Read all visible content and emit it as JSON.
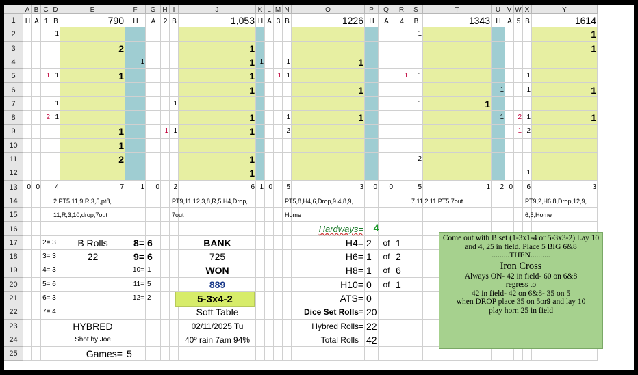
{
  "columns": [
    "A",
    "B",
    "C",
    "D",
    "E",
    "F",
    "G",
    "H",
    "I",
    "J",
    "K",
    "L",
    "M",
    "N",
    "O",
    "P",
    "Q",
    "R",
    "S",
    "T",
    "U",
    "V",
    "W",
    "X",
    "Y"
  ],
  "rows": [
    "1",
    "2",
    "3",
    "4",
    "5",
    "6",
    "7",
    "8",
    "9",
    "10",
    "11",
    "12",
    "13",
    "14",
    "15",
    "16",
    "17",
    "18",
    "19",
    "20",
    "21",
    "22",
    "23",
    "24",
    "25"
  ],
  "header_row": {
    "A": "H",
    "B": "A",
    "C": "1",
    "D": "B",
    "E": "790",
    "F": "H",
    "G": "A",
    "H": "2",
    "I": "B",
    "J": "1,053",
    "K": "H",
    "L": "A",
    "M": "3",
    "N": "B",
    "O": "1226",
    "P": "H",
    "Q": "A",
    "R": "4",
    "S": "B",
    "T": "1343",
    "U": "H",
    "V": "A",
    "W": "5",
    "X": "B",
    "Y": "1614"
  },
  "cells": [
    {
      "col": "D",
      "row": 2,
      "v": "1"
    },
    {
      "col": "S",
      "row": 2,
      "v": "1"
    },
    {
      "col": "Y",
      "row": 2,
      "v": "1"
    },
    {
      "col": "E",
      "row": 3,
      "v": "2"
    },
    {
      "col": "J",
      "row": 3,
      "v": "1"
    },
    {
      "col": "Y",
      "row": 3,
      "v": "1"
    },
    {
      "col": "F",
      "row": 4,
      "v": "1"
    },
    {
      "col": "J",
      "row": 4,
      "v": "1"
    },
    {
      "col": "K",
      "row": 4,
      "v": "1"
    },
    {
      "col": "N",
      "row": 4,
      "v": "1"
    },
    {
      "col": "O",
      "row": 4,
      "v": "1"
    },
    {
      "col": "C",
      "row": 5,
      "v": "1",
      "red": true
    },
    {
      "col": "D",
      "row": 5,
      "v": "1"
    },
    {
      "col": "E",
      "row": 5,
      "v": "1"
    },
    {
      "col": "J",
      "row": 5,
      "v": "1"
    },
    {
      "col": "M",
      "row": 5,
      "v": "1",
      "red": true
    },
    {
      "col": "N",
      "row": 5,
      "v": "1"
    },
    {
      "col": "R",
      "row": 5,
      "v": "1",
      "red": true
    },
    {
      "col": "S",
      "row": 5,
      "v": "1"
    },
    {
      "col": "X",
      "row": 5,
      "v": "1"
    },
    {
      "col": "J",
      "row": 6,
      "v": "1"
    },
    {
      "col": "O",
      "row": 6,
      "v": "1"
    },
    {
      "col": "U",
      "row": 6,
      "v": "1"
    },
    {
      "col": "X",
      "row": 6,
      "v": "1"
    },
    {
      "col": "Y",
      "row": 6,
      "v": "1"
    },
    {
      "col": "D",
      "row": 7,
      "v": "1"
    },
    {
      "col": "I",
      "row": 7,
      "v": "1"
    },
    {
      "col": "S",
      "row": 7,
      "v": "1"
    },
    {
      "col": "T",
      "row": 7,
      "v": "1"
    },
    {
      "col": "C",
      "row": 8,
      "v": "2",
      "red": true
    },
    {
      "col": "D",
      "row": 8,
      "v": "1"
    },
    {
      "col": "J",
      "row": 8,
      "v": "1"
    },
    {
      "col": "N",
      "row": 8,
      "v": "1"
    },
    {
      "col": "O",
      "row": 8,
      "v": "1"
    },
    {
      "col": "U",
      "row": 8,
      "v": "1"
    },
    {
      "col": "W",
      "row": 8,
      "v": "2",
      "red": true
    },
    {
      "col": "X",
      "row": 8,
      "v": "1"
    },
    {
      "col": "Y",
      "row": 8,
      "v": "1"
    },
    {
      "col": "E",
      "row": 9,
      "v": "1"
    },
    {
      "col": "H",
      "row": 9,
      "v": "1",
      "red": true
    },
    {
      "col": "I",
      "row": 9,
      "v": "1"
    },
    {
      "col": "J",
      "row": 9,
      "v": "1"
    },
    {
      "col": "N",
      "row": 9,
      "v": "2"
    },
    {
      "col": "W",
      "row": 9,
      "v": "1",
      "red": true
    },
    {
      "col": "X",
      "row": 9,
      "v": "2"
    },
    {
      "col": "E",
      "row": 10,
      "v": "1"
    },
    {
      "col": "E",
      "row": 11,
      "v": "2"
    },
    {
      "col": "J",
      "row": 11,
      "v": "1"
    },
    {
      "col": "S",
      "row": 11,
      "v": "2"
    },
    {
      "col": "J",
      "row": 12,
      "v": "1"
    },
    {
      "col": "X",
      "row": 12,
      "v": "1"
    }
  ],
  "totals_row": {
    "A": "0",
    "B": "0",
    "D": "4",
    "E": "7",
    "F": "1",
    "G": "0",
    "I": "2",
    "J": "6",
    "K": "1",
    "L": "0",
    "N": "5",
    "O": "3",
    "P": "0",
    "Q": "0",
    "S": "5",
    "T": "1",
    "U": "2",
    "V": "0",
    "X": "6",
    "Y": "3"
  },
  "sequences": [
    {
      "col": "D",
      "row14": "2,PT5,11,9,R,3,5,pt8,",
      "row15": "11,R,3,10,drop,7out"
    },
    {
      "col": "I",
      "row14": "PT9,11,12,3,8,R,5,H4,Drop,",
      "row15": "7out"
    },
    {
      "col": "N",
      "row14": "PT5,8,H4,6,Drop,9,4,8,9,",
      "row15": "Home"
    },
    {
      "col": "S",
      "row14": "7,11,2,11,PT5,7out",
      "row15": ""
    },
    {
      "col": "X",
      "row14": "PT9,2,H6,8,Drop,12,9,",
      "row15": "6,5,Home"
    }
  ],
  "sum_counts": [
    {
      "label": "2= 3",
      "row": 17
    },
    {
      "label": "3= 3",
      "row": 18
    },
    {
      "label": "4= 3",
      "row": 19
    },
    {
      "label": "5= 6",
      "row": 20
    },
    {
      "label": "6= 3",
      "row": 21
    },
    {
      "label": "7= 4",
      "row": 22
    }
  ],
  "sum_counts_b": [
    {
      "label": "8=",
      "val": "6",
      "row": 17
    },
    {
      "label": "9=",
      "val": "6",
      "row": 18
    },
    {
      "label": "10=",
      "val": "1",
      "row": 19
    },
    {
      "label": "11=",
      "val": "5",
      "row": 20
    },
    {
      "label": "12=",
      "val": "2",
      "row": 21
    }
  ],
  "b_rolls_label": "B Rolls",
  "b_rolls_value": "22",
  "hybred": "HYBRED",
  "shot_by": "Shot by Joe",
  "games_label": "Games=",
  "games_value": "5",
  "bank_label": "BANK",
  "bank_value": "725",
  "won_label": "WON",
  "won_value": "889",
  "dice_set": "5-3x4-2",
  "table_type": "Soft Table",
  "date": "02/11/2025 Tu",
  "weather": "40º rain 7am 94%",
  "hardways_label": "Hardways=",
  "hardways_value": "4",
  "hard": [
    {
      "label": "H4=",
      "val": "2",
      "of": "of",
      "tot": "1",
      "row": 17
    },
    {
      "label": "H6=",
      "val": "1",
      "of": "of",
      "tot": "2",
      "row": 18
    },
    {
      "label": "H8=",
      "val": "1",
      "of": "of",
      "tot": "6",
      "row": 19
    },
    {
      "label": "H10=",
      "val": "0",
      "of": "of",
      "tot": "1",
      "row": 20
    }
  ],
  "ats_label": "ATS=",
  "ats_value": "0",
  "dice_set_rolls_label": "Dice Set Rolls=",
  "dice_set_rolls_value": "20",
  "hybred_rolls_label": "Hybred Rolls=",
  "hybred_rolls_value": "22",
  "total_rolls_label": "Total Rolls=",
  "total_rolls_value": "42",
  "note": {
    "line1": "Come out with B set (1-3x1-4 or 5-3x3-2) Lay 10",
    "line2": "and 4, 25 in field. Place 5 BIG 6&8",
    "line3": ".........THEN..........",
    "title": "Iron Cross",
    "line4": "Always ON- 42 in field- 60 on 6&8",
    "line5": "regress to",
    "line6": "42 in field- 42 on 6&8- 35 on 5",
    "line7a": "when DROP place 35 on 5or",
    "line7b": "9",
    "line7c": "and lay 10",
    "line8": "play horn 25 in field"
  }
}
